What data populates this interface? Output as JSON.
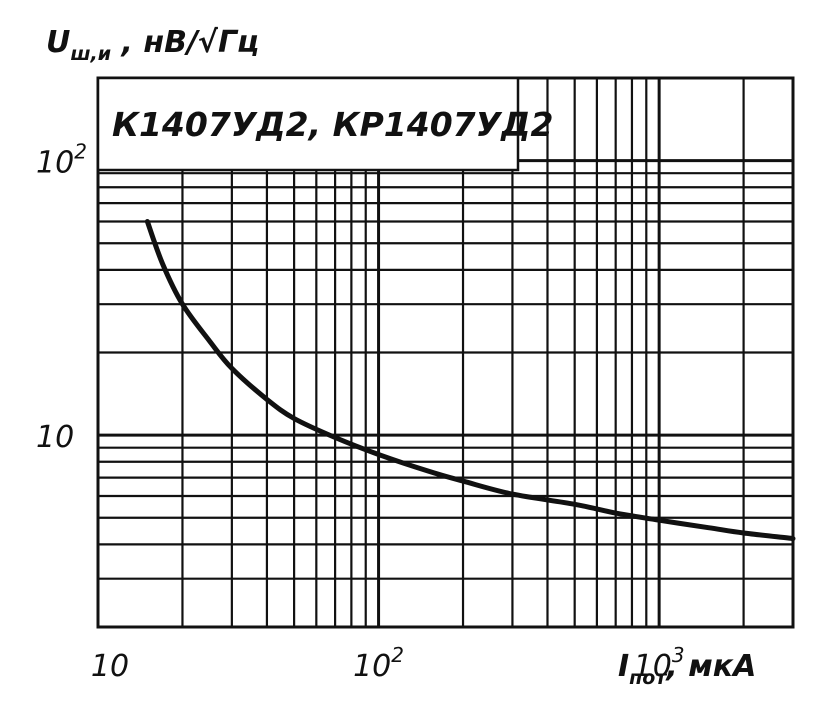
{
  "chart_data": {
    "type": "line",
    "title": "К1407УД2, КР1407УД2",
    "ylabel": {
      "symbol": "U",
      "subscript": "ш,и",
      "unit": " ,  нВ/√Гц"
    },
    "xlabel": {
      "symbol": "I",
      "subscript": "пот",
      "unit": ",  мкА"
    },
    "x_scale": "log",
    "y_scale": "log",
    "xlim": [
      10,
      3000
    ],
    "ylim": [
      2,
      200
    ],
    "x_ticks": [
      {
        "value": 10,
        "base": "10",
        "exp": ""
      },
      {
        "value": 100,
        "base": "10",
        "exp": "2"
      },
      {
        "value": 1000,
        "base": "10",
        "exp": "3"
      }
    ],
    "y_ticks": [
      {
        "value": 10,
        "base": "10",
        "exp": ""
      },
      {
        "value": 100,
        "base": "10",
        "exp": "2"
      }
    ],
    "grid": true,
    "series": [
      {
        "x": [
          15,
          17,
          20,
          25,
          30,
          40,
          50,
          70,
          100,
          150,
          200,
          300,
          500,
          700,
          1000,
          1500,
          2000,
          3000
        ],
        "y": [
          60,
          42,
          30,
          22,
          17.5,
          13.5,
          11.5,
          9.8,
          8.5,
          7.4,
          6.8,
          6.1,
          5.6,
          5.2,
          4.9,
          4.6,
          4.4,
          4.2
        ]
      }
    ]
  }
}
